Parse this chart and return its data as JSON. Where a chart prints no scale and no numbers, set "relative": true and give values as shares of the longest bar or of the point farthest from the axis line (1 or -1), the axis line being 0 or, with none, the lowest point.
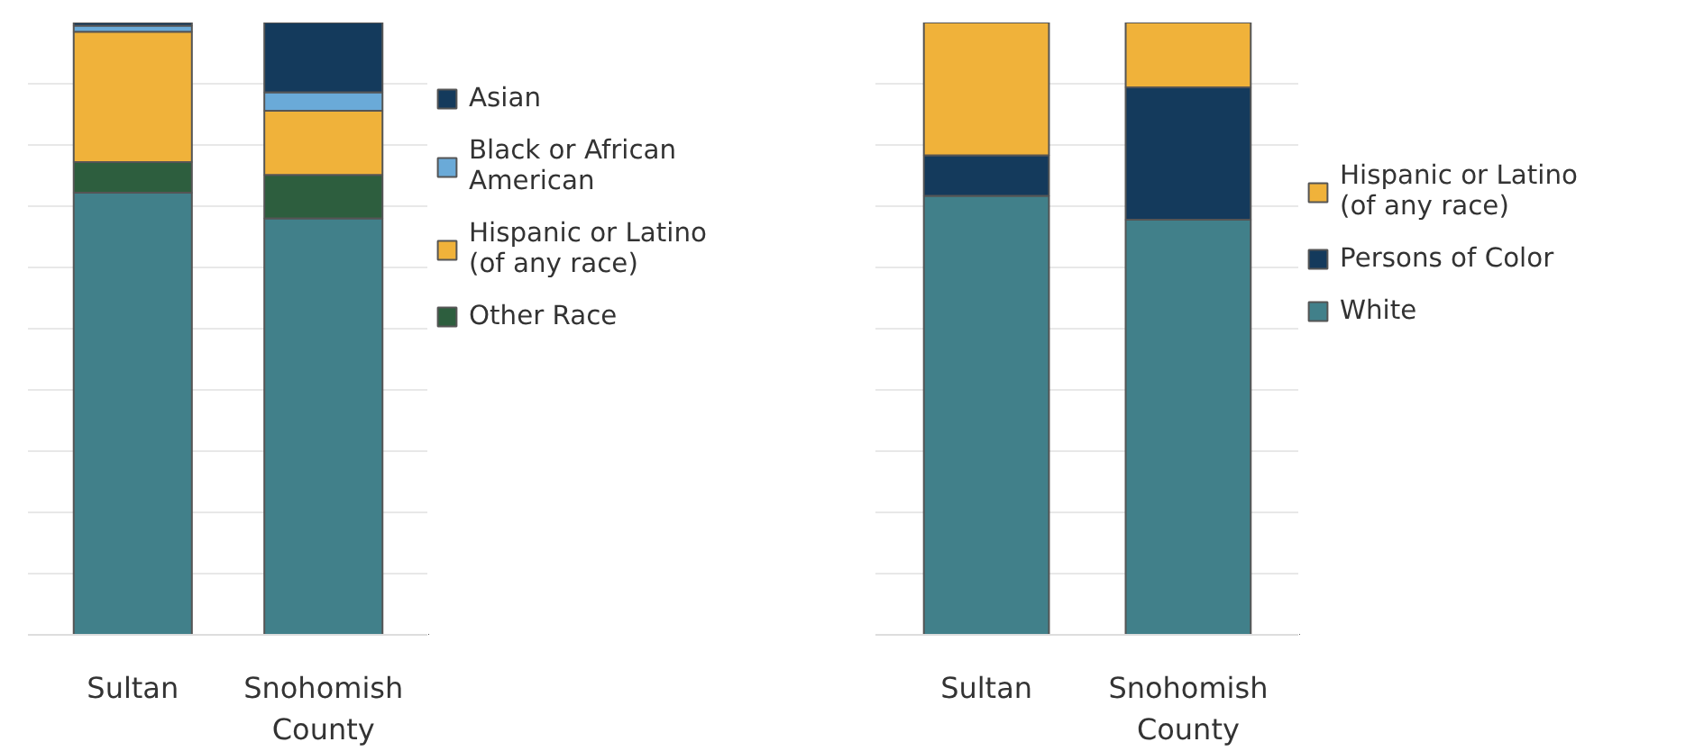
{
  "chart_data": [
    {
      "type": "bar",
      "stacked": true,
      "relative": true,
      "grid": "y",
      "legend": "right",
      "categories": [
        "Sultan",
        "Snohomish County"
      ],
      "series": [
        {
          "color": "#41808a",
          "values": [
            0.722,
            0.68
          ]
        },
        {
          "name": "Other Race",
          "color": "#2d5e3e",
          "values": [
            0.05,
            0.071
          ]
        },
        {
          "name": "Hispanic or Latino (of any race)",
          "color": "#f0b23a",
          "values": [
            0.213,
            0.105
          ]
        },
        {
          "name": "Black or African American",
          "color": "#6aaad8",
          "values": [
            0.01,
            0.03
          ]
        },
        {
          "name": "Asian",
          "color": "#143a5c",
          "values": [
            0.005,
            0.114
          ]
        }
      ]
    },
    {
      "type": "bar",
      "stacked": true,
      "relative": true,
      "grid": "y",
      "legend": "right",
      "categories": [
        "Sultan",
        "Snohomish County"
      ],
      "series": [
        {
          "name": "White",
          "color": "#41808a",
          "values": [
            0.717,
            0.678
          ]
        },
        {
          "name": "Persons of Color",
          "color": "#143a5c",
          "values": [
            0.066,
            0.216
          ]
        },
        {
          "name": "Hispanic or Latino (of any race)",
          "color": "#f0b23a",
          "values": [
            0.217,
            0.106
          ]
        }
      ]
    }
  ]
}
